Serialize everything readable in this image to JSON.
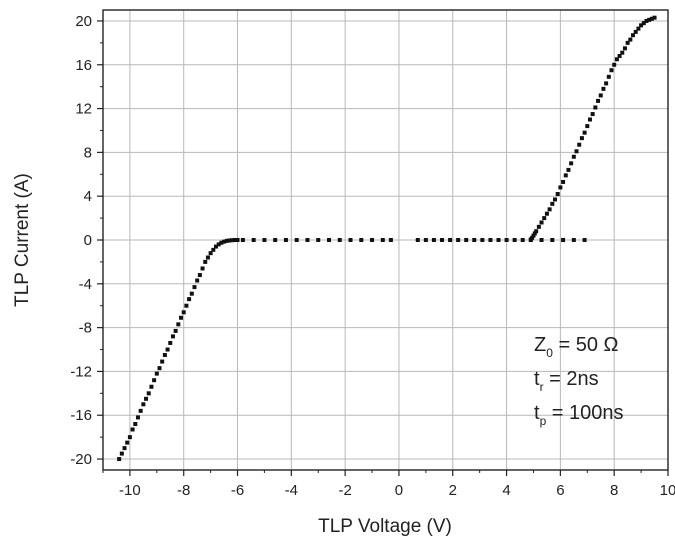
{
  "chart_data": {
    "type": "scatter",
    "title": "",
    "xlabel": "TLP Voltage (V)",
    "ylabel": "TLP Current (A)",
    "xlim": [
      -11,
      10
    ],
    "ylim": [
      -21,
      21
    ],
    "xticks": [
      -10,
      -8,
      -6,
      -4,
      -2,
      0,
      2,
      4,
      6,
      8,
      10
    ],
    "yticks": [
      -20,
      -16,
      -12,
      -8,
      -4,
      0,
      4,
      8,
      12,
      16,
      20
    ],
    "grid": true,
    "marker_color": "#111111",
    "annotation": {
      "z_main": "Z",
      "z_sub": "0",
      "z_rest": " = 50 Ω",
      "tr_main": "t",
      "tr_sub": "r",
      "tr_rest": " = 2ns",
      "tp_main": "t",
      "tp_sub": "p",
      "tp_rest": " = 100ns"
    },
    "series": [
      {
        "x": [
          -10.4,
          -10.3,
          -10.2,
          -10.1,
          -10.0,
          -9.9,
          -9.8,
          -9.7,
          -9.6,
          -9.5,
          -9.4,
          -9.3,
          -9.2,
          -9.1,
          -9.0,
          -8.9,
          -8.8,
          -8.7,
          -8.6,
          -8.5,
          -8.4,
          -8.3,
          -8.2,
          -8.1,
          -8.0,
          -7.9,
          -7.8,
          -7.7,
          -7.6,
          -7.5,
          -7.4,
          -7.3,
          -7.2,
          -7.1,
          -7.0,
          -6.9,
          -6.8,
          -6.7,
          -6.6,
          -6.5,
          -6.4,
          -6.3,
          -6.2,
          -6.1,
          -6.0
        ],
        "y": [
          -20.0,
          -19.5,
          -19.0,
          -18.5,
          -18.0,
          -17.3,
          -16.8,
          -16.2,
          -15.6,
          -15.0,
          -14.5,
          -14.0,
          -13.4,
          -12.8,
          -12.2,
          -11.7,
          -11.1,
          -10.5,
          -10.0,
          -9.4,
          -8.8,
          -8.3,
          -7.7,
          -7.1,
          -6.6,
          -6.0,
          -5.4,
          -4.9,
          -4.3,
          -3.7,
          -3.2,
          -2.6,
          -2.0,
          -1.6,
          -1.2,
          -0.9,
          -0.6,
          -0.4,
          -0.25,
          -0.15,
          -0.08,
          -0.04,
          -0.02,
          0.0,
          0.0
        ]
      },
      {
        "x": [
          -6.1,
          -5.8,
          -5.4,
          -5.0,
          -4.6,
          -4.2,
          -3.8,
          -3.4,
          -3.0,
          -2.6,
          -2.2,
          -1.8,
          -1.4,
          -1.0,
          -0.6,
          -0.3,
          0.7,
          1.0,
          1.3,
          1.6,
          1.9,
          2.2,
          2.5,
          2.8,
          3.1,
          3.4,
          3.7,
          4.0,
          4.3,
          4.6,
          4.9,
          5.3,
          5.7,
          6.1,
          6.5,
          6.9
        ],
        "y": [
          0,
          0,
          0,
          0,
          0,
          0,
          0,
          0,
          0,
          0,
          0,
          0,
          0,
          0,
          0,
          0,
          0,
          0,
          0,
          0,
          0,
          0,
          0,
          0,
          0,
          0,
          0,
          0,
          0,
          0,
          0,
          0,
          0,
          0,
          0,
          0
        ]
      },
      {
        "x": [
          4.9,
          4.95,
          5.0,
          5.05,
          5.1,
          5.2,
          5.3,
          5.4,
          5.5,
          5.6,
          5.7,
          5.8,
          5.9,
          6.0,
          6.1,
          6.2,
          6.3,
          6.4,
          6.5,
          6.6,
          6.7,
          6.8,
          6.9,
          7.0,
          7.1,
          7.2,
          7.3,
          7.4,
          7.5,
          7.6,
          7.7,
          7.8,
          7.9,
          8.0,
          8.1,
          8.2,
          8.3,
          8.4,
          8.5,
          8.6,
          8.7,
          8.8,
          8.9,
          9.0,
          9.1,
          9.2,
          9.3,
          9.4,
          9.5
        ],
        "y": [
          0.05,
          0.2,
          0.4,
          0.6,
          0.8,
          1.2,
          1.6,
          2.0,
          2.4,
          2.8,
          3.3,
          3.7,
          4.2,
          4.8,
          5.3,
          5.9,
          6.4,
          7.0,
          7.6,
          8.1,
          8.7,
          9.3,
          9.8,
          10.4,
          11.0,
          11.5,
          12.1,
          12.7,
          13.2,
          13.8,
          14.3,
          14.9,
          15.5,
          16.0,
          16.5,
          16.8,
          17.1,
          17.5,
          18.0,
          18.3,
          18.7,
          19.0,
          19.3,
          19.6,
          19.8,
          20.0,
          20.1,
          20.2,
          20.3
        ]
      }
    ]
  }
}
